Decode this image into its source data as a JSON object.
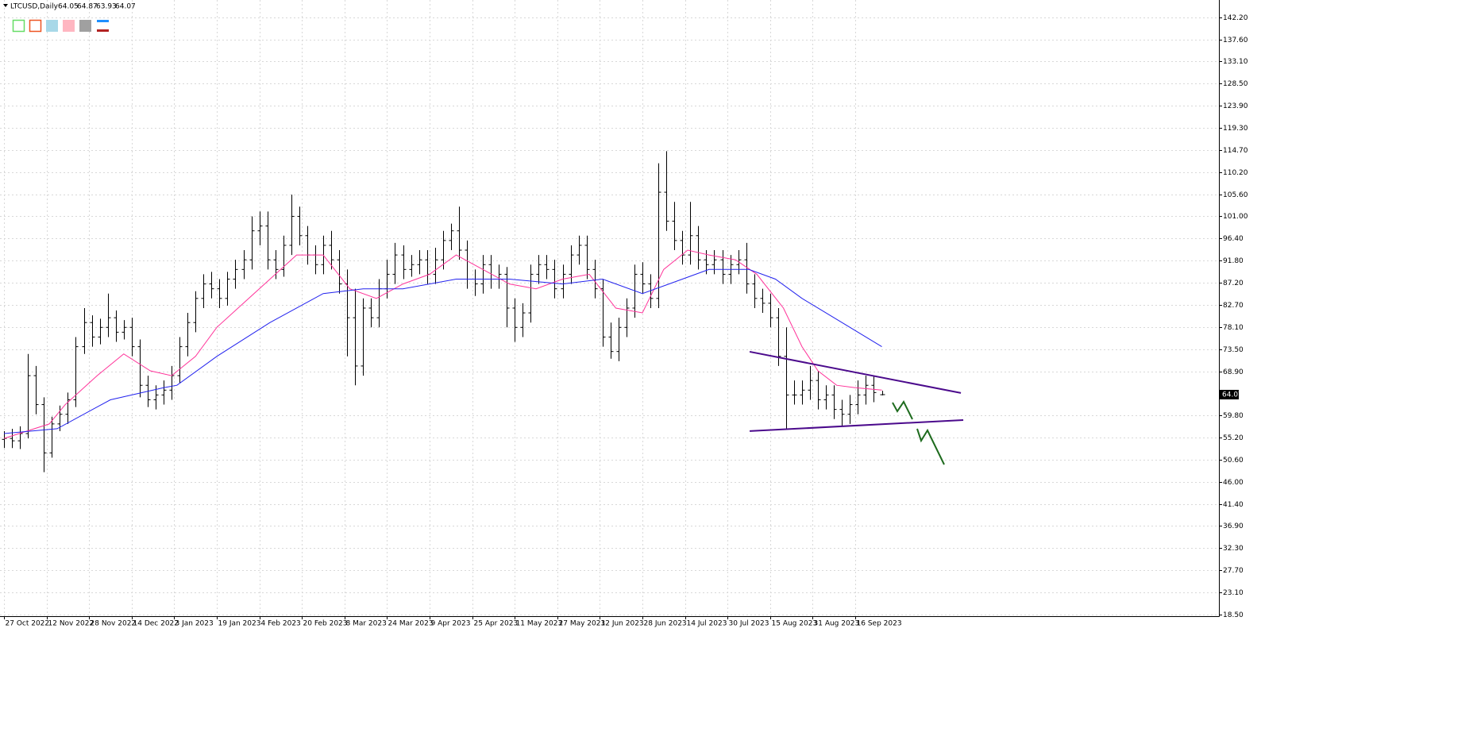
{
  "chart_data": {
    "type": "ohlc",
    "symbol": "LTCUSD,Daily",
    "x": [
      0,
      3,
      6,
      9,
      12,
      15,
      18,
      21,
      24,
      27,
      30,
      33,
      36,
      39,
      42,
      45,
      48,
      51,
      54,
      57,
      60,
      63,
      66,
      69,
      72,
      75,
      78,
      81,
      84,
      87,
      90,
      93,
      96,
      99,
      102,
      105,
      108,
      111,
      114,
      117,
      120,
      123,
      126,
      129,
      132,
      135,
      138,
      141,
      144,
      147,
      150,
      153,
      156,
      159,
      162,
      165,
      168,
      171,
      174,
      177,
      180,
      183,
      186,
      189,
      192,
      195,
      198,
      201,
      204,
      207,
      210,
      213,
      216,
      219,
      222,
      225,
      228,
      231,
      234,
      237,
      240,
      243,
      246,
      249,
      252,
      255,
      258,
      261,
      264,
      267,
      270,
      273,
      276,
      279,
      282,
      285,
      288,
      291,
      294,
      297,
      300,
      303,
      306,
      309,
      312,
      315,
      318,
      321,
      324,
      327,
      330
    ],
    "open": [
      54.8,
      55,
      54.5,
      56,
      68,
      62,
      52,
      58,
      60,
      63,
      74,
      79,
      76,
      78,
      80,
      77,
      78,
      74,
      66,
      63,
      64,
      65,
      68,
      74,
      79,
      84,
      87,
      86,
      84,
      88,
      90,
      92,
      98,
      99,
      92,
      90,
      95,
      101,
      97,
      93,
      91,
      95,
      92,
      87,
      80,
      70,
      82,
      80,
      86,
      89,
      93,
      90,
      91,
      92,
      89,
      92,
      96,
      98,
      94,
      88,
      87,
      91,
      88,
      89,
      82,
      78,
      81,
      89,
      91,
      90,
      86,
      89,
      93,
      95,
      90,
      86,
      76,
      73,
      78,
      82,
      89,
      87,
      84,
      106,
      100,
      96,
      93,
      97,
      92,
      91,
      92,
      89,
      91,
      92,
      87,
      84,
      83,
      80,
      72,
      64,
      64,
      65,
      67,
      63,
      64,
      61,
      60,
      62,
      64,
      66,
      64.05
    ],
    "high": [
      56.5,
      57,
      57.5,
      72.5,
      70,
      63.5,
      59.5,
      61.8,
      64.5,
      76,
      82,
      80.5,
      79.8,
      85,
      81.5,
      79.5,
      80,
      75.5,
      68,
      66,
      67,
      70,
      76,
      81,
      85.5,
      89,
      89.5,
      88,
      89.5,
      92,
      94,
      101,
      102,
      102,
      94,
      97,
      105.5,
      103,
      99,
      95,
      97,
      98,
      94,
      90,
      86,
      84,
      84,
      88,
      92,
      95.5,
      95,
      93,
      94,
      94,
      94.5,
      98,
      99.5,
      103,
      96,
      90,
      93,
      93,
      91,
      90.5,
      84,
      83,
      91,
      93,
      93,
      92,
      91,
      95,
      97,
      97,
      92,
      88,
      79,
      80,
      84,
      91,
      91.5,
      89,
      112,
      114.5,
      104,
      98,
      104,
      99,
      94,
      94,
      94,
      93,
      94,
      95.5,
      89,
      86,
      85,
      82,
      78,
      67,
      67,
      70,
      69,
      66,
      66,
      63,
      64,
      67,
      68,
      68,
      64.87
    ],
    "low": [
      53,
      53,
      52.8,
      55,
      60,
      48,
      51,
      56.5,
      58,
      61.5,
      72.5,
      74,
      74.5,
      76,
      75,
      75.5,
      72,
      63.5,
      61.5,
      61,
      62,
      63,
      66.5,
      72,
      77,
      82,
      84,
      82,
      82.5,
      86,
      88,
      90,
      95,
      90,
      88,
      88.5,
      93,
      95,
      91,
      89,
      89,
      90,
      85,
      72,
      66,
      68,
      78,
      78,
      84,
      87,
      88,
      88.5,
      89,
      87,
      87,
      90,
      94,
      92,
      86,
      84.5,
      85,
      86,
      86,
      78,
      75,
      76,
      79,
      87,
      88,
      84,
      84,
      87,
      91,
      88,
      84,
      74,
      71.5,
      71,
      76,
      80,
      85,
      82,
      82,
      98,
      94,
      91,
      91,
      90,
      89,
      89,
      87,
      87,
      89,
      85,
      82,
      81,
      78,
      70,
      57,
      62,
      62,
      63,
      61,
      61,
      59,
      57.5,
      58,
      60,
      62,
      62.5,
      63.93
    ],
    "close": [
      55,
      54.5,
      56,
      68,
      62,
      52,
      58,
      60,
      63,
      74,
      79,
      76,
      78,
      80,
      77,
      78,
      74,
      66,
      63,
      64,
      65,
      68,
      74,
      79,
      84,
      87,
      86,
      84,
      88,
      90,
      92,
      98,
      99,
      92,
      90,
      95,
      101,
      97,
      93,
      91,
      95,
      92,
      87,
      80,
      70,
      82,
      80,
      86,
      89,
      93,
      90,
      91,
      92,
      89,
      92,
      96,
      98,
      94,
      88,
      87,
      91,
      88,
      89,
      82,
      78,
      81,
      89,
      91,
      90,
      86,
      89,
      93,
      95,
      90,
      86,
      76,
      73,
      78,
      82,
      89,
      87,
      84,
      106,
      100,
      96,
      93,
      97,
      92,
      91,
      92,
      89,
      91,
      92,
      87,
      84,
      83,
      80,
      72,
      64,
      64,
      65,
      67,
      63,
      64,
      61,
      60,
      62,
      64,
      66,
      64.5,
      64.07
    ],
    "color": "#000000",
    "series": [
      {
        "color": "#ff3399",
        "x": [
          0,
          17,
          23,
          35,
          45,
          55,
          63,
          72,
          80,
          90,
          100,
          110,
          120,
          130,
          140,
          150,
          160,
          170,
          180,
          190,
          200,
          210,
          220,
          230,
          240,
          248,
          257,
          265,
          275,
          283,
          293,
          300,
          306,
          313,
          320,
          330
        ],
        "values": [
          55,
          58,
          62,
          68,
          72.5,
          69,
          68,
          72,
          78,
          83,
          88,
          93,
          93,
          86,
          84,
          87,
          89,
          93,
          90,
          87,
          86,
          88,
          89,
          82,
          81,
          90,
          94,
          93,
          92,
          89,
          82,
          74,
          69,
          66,
          65.5,
          65
        ]
      },
      {
        "color": "#2222ee",
        "x": [
          0,
          20,
          40,
          60,
          65,
          80,
          100,
          120,
          135,
          150,
          170,
          190,
          210,
          225,
          240,
          250,
          265,
          280,
          290,
          300,
          315,
          330
        ],
        "values": [
          56,
          57,
          63,
          65.5,
          66,
          72,
          79,
          85,
          86,
          86,
          88,
          88,
          87,
          88,
          85,
          87,
          90,
          90,
          88,
          84,
          79,
          74
        ]
      }
    ],
    "trendlines": [
      {
        "color": "#4b0a8c",
        "x": [
          280.3,
          359.7
        ],
        "y": [
          72.96,
          64.41
        ]
      },
      {
        "color": "#4b0a8c",
        "x": [
          280.3,
          360.6
        ],
        "y": [
          56.51,
          58.81
        ]
      }
    ],
    "xlim": [
      -1.5,
      456.7
    ],
    "xticks": [
      {
        "value": 0,
        "label": "27 Oct 2022"
      },
      {
        "value": 16,
        "label": "12 Nov 2022"
      },
      {
        "value": 32,
        "label": "28 Nov 2022"
      },
      {
        "value": 48,
        "label": "14 Dec 2022"
      },
      {
        "value": 64,
        "label": "3 Jan 2023"
      },
      {
        "value": 80,
        "label": "19 Jan 2023"
      },
      {
        "value": 96,
        "label": "4 Feb 2023"
      },
      {
        "value": 112,
        "label": "20 Feb 2023"
      },
      {
        "value": 128,
        "label": "8 Mar 2023"
      },
      {
        "value": 144,
        "label": "24 Mar 2023"
      },
      {
        "value": 160,
        "label": "9 Apr 2023"
      },
      {
        "value": 176,
        "label": "25 Apr 2023"
      },
      {
        "value": 192,
        "label": "11 May 2023"
      },
      {
        "value": 208,
        "label": "27 May 2023"
      },
      {
        "value": 224,
        "label": "12 Jun 2023"
      },
      {
        "value": 240,
        "label": "28 Jun 2023"
      },
      {
        "value": 256,
        "label": "14 Jul 2023"
      },
      {
        "value": 272,
        "label": "30 Jul 2023"
      },
      {
        "value": 288,
        "label": "15 Aug 2023"
      },
      {
        "value": 304,
        "label": "31 Aug 2023"
      },
      {
        "value": 320,
        "label": "16 Sep 2023"
      }
    ],
    "ylim": [
      18.17,
      145.82
    ],
    "yticks": [
      {
        "value": 142.2,
        "label": "142.20"
      },
      {
        "value": 137.6,
        "label": "137.60"
      },
      {
        "value": 133.1,
        "label": "133.10"
      },
      {
        "value": 128.5,
        "label": "128.50"
      },
      {
        "value": 123.9,
        "label": "123.90"
      },
      {
        "value": 119.3,
        "label": "119.30"
      },
      {
        "value": 114.7,
        "label": "114.70"
      },
      {
        "value": 110.2,
        "label": "110.20"
      },
      {
        "value": 105.6,
        "label": "105.60"
      },
      {
        "value": 101,
        "label": "101.00"
      },
      {
        "value": 96.4,
        "label": "96.40"
      },
      {
        "value": 91.8,
        "label": "91.80"
      },
      {
        "value": 87.2,
        "label": "87.20"
      },
      {
        "value": 82.7,
        "label": "82.70"
      },
      {
        "value": 78.1,
        "label": "78.10"
      },
      {
        "value": 73.5,
        "label": "73.50"
      },
      {
        "value": 68.9,
        "label": "68.90"
      },
      {
        "value": 59.8,
        "label": "59.80"
      },
      {
        "value": 55.2,
        "label": "55.20"
      },
      {
        "value": 50.6,
        "label": "50.60"
      },
      {
        "value": 46,
        "label": "46.00"
      },
      {
        "value": 41.4,
        "label": "41.40"
      },
      {
        "value": 36.9,
        "label": "36.90"
      },
      {
        "value": 32.3,
        "label": "32.30"
      },
      {
        "value": 27.7,
        "label": "27.70"
      },
      {
        "value": 23.1,
        "label": "23.10"
      },
      {
        "value": 18.5,
        "label": "18.50"
      }
    ],
    "grid": true
  }
}
